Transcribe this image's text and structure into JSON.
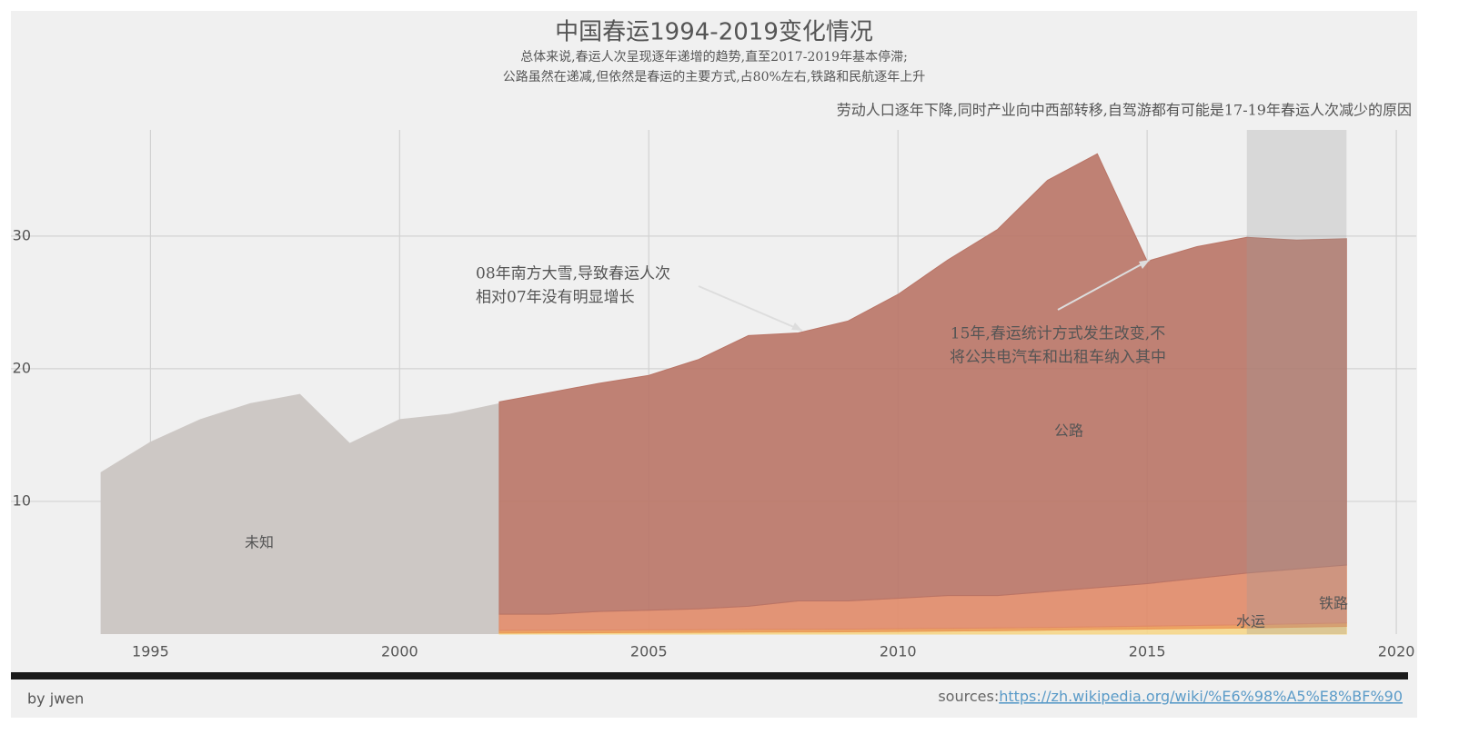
{
  "chart_data": {
    "type": "area",
    "title": "中国春运1994-2019变化情况",
    "subtitle": [
      "总体来说,春运人次呈现逐年递增的趋势,直至2017-2019年基本停滞;",
      "公路虽然在递减,但依然是春运的主要方式,占80%左右,铁路和民航逐年上升"
    ],
    "note": "劳动人口逐年下降,同时产业向中西部转移,自驾游都有可能是17-19年春运人次减少的原因",
    "annotations": [
      [
        "08年南方大雪,导致春运人次",
        "相对07年没有明显增长"
      ],
      [
        "15年,春运统计方式发生改变,不",
        "将公共电汽车和出租车纳入其中"
      ]
    ],
    "x": [
      1994,
      1995,
      1996,
      1997,
      1998,
      1999,
      2000,
      2001,
      2002,
      2003,
      2004,
      2005,
      2006,
      2007,
      2008,
      2009,
      2010,
      2011,
      2012,
      2013,
      2014,
      2015,
      2016,
      2017,
      2018,
      2019
    ],
    "series": [
      {
        "name": "未知",
        "color": "#cdc8c5",
        "values": [
          12.2,
          14.5,
          16.2,
          17.4,
          18.1,
          14.4,
          16.2,
          16.6,
          17.4,
          null,
          null,
          null,
          null,
          null,
          null,
          null,
          null,
          null,
          null,
          null,
          null,
          null,
          null,
          null,
          null,
          null
        ]
      },
      {
        "color": "#f5d68a",
        "stack": "transport",
        "values": [
          null,
          null,
          null,
          null,
          null,
          null,
          null,
          null,
          0.08,
          0.09,
          0.1,
          0.12,
          0.13,
          0.15,
          0.16,
          0.17,
          0.2,
          0.23,
          0.26,
          0.3,
          0.34,
          0.38,
          0.42,
          0.46,
          0.52,
          0.58
        ]
      },
      {
        "name": "水运",
        "color": "#eb9a55",
        "stack": "transport",
        "values": [
          null,
          null,
          null,
          null,
          null,
          null,
          null,
          null,
          0.2,
          0.2,
          0.2,
          0.2,
          0.2,
          0.2,
          0.2,
          0.2,
          0.2,
          0.2,
          0.2,
          0.2,
          0.21,
          0.22,
          0.23,
          0.24,
          0.25,
          0.26
        ]
      },
      {
        "name": "铁路",
        "color": "#e08a68",
        "stack": "transport",
        "values": [
          null,
          null,
          null,
          null,
          null,
          null,
          null,
          null,
          1.22,
          1.21,
          1.4,
          1.48,
          1.57,
          1.75,
          2.14,
          2.13,
          2.3,
          2.47,
          2.44,
          2.7,
          2.95,
          3.2,
          3.55,
          3.9,
          4.13,
          4.36
        ]
      },
      {
        "name": "公路",
        "color": "#b97466",
        "stack": "transport",
        "values": [
          null,
          null,
          null,
          null,
          null,
          null,
          null,
          null,
          16.0,
          16.7,
          17.2,
          17.7,
          18.8,
          20.4,
          20.2,
          21.1,
          22.9,
          25.3,
          27.6,
          31.0,
          32.7,
          24.3,
          25.0,
          25.3,
          24.8,
          24.6
        ]
      }
    ],
    "highlight_x": [
      2017,
      2019
    ],
    "xlim": [
      1992.2,
      2020.4
    ],
    "xticks": [
      1995,
      2000,
      2005,
      2010,
      2015,
      2020
    ],
    "ylim": [
      0,
      38
    ],
    "yticks": [
      10,
      20,
      30
    ],
    "grid": true
  },
  "footer": {
    "author": "by jwen",
    "source_label": "sources:",
    "source_url": "https://zh.wikipedia.org/wiki/%E6%98%A5%E8%BF%90"
  }
}
